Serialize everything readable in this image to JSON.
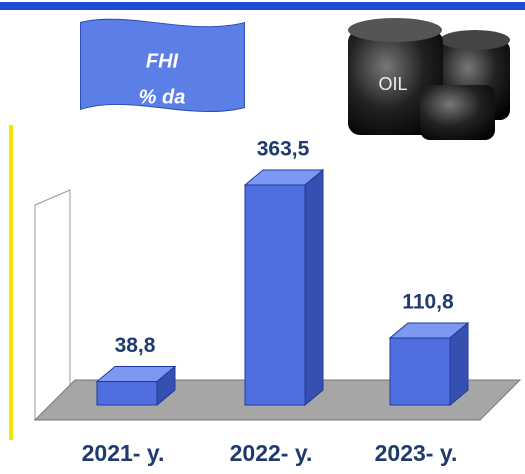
{
  "banner": {
    "title": "FHI",
    "subtitle": "% da"
  },
  "image": {
    "label": "OIL"
  },
  "chart_data": {
    "type": "bar",
    "categories": [
      "2021- y.",
      "2022- y.",
      "2023- y."
    ],
    "values": [
      38.8,
      363.5,
      110.8
    ],
    "value_labels": [
      "38,8",
      "363,5",
      "110,8"
    ],
    "color": "#4f6fe0"
  }
}
